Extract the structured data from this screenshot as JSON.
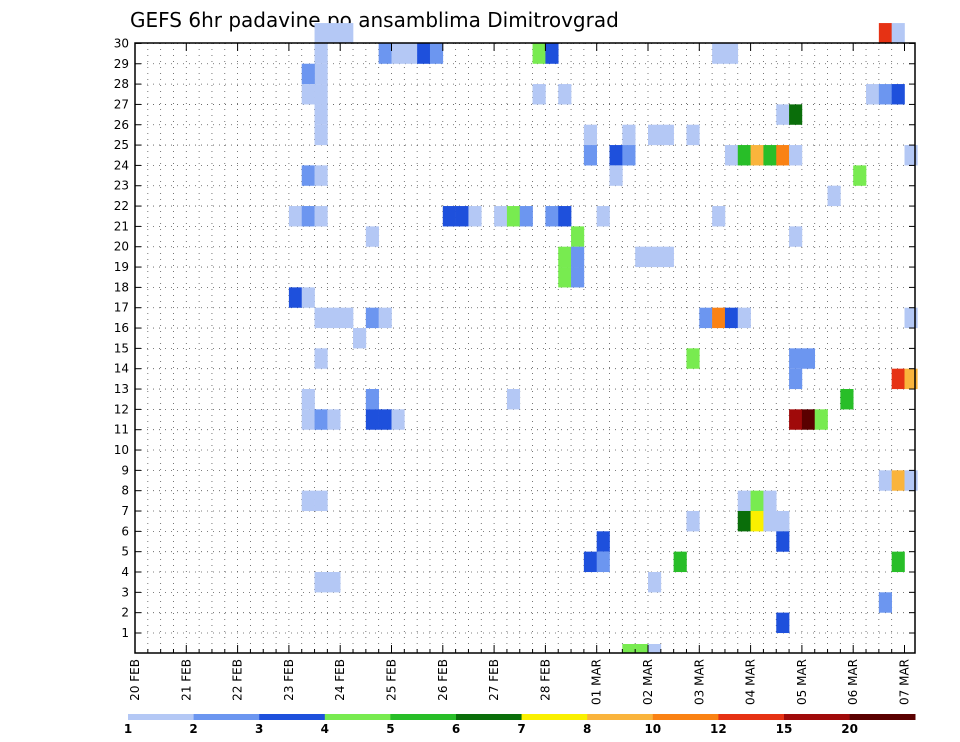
{
  "chart_data": {
    "type": "heatmap",
    "title": "GEFS 6hr padavine po ansamblima Dimitrovgrad",
    "x_tick_labels": [
      "20 FEB",
      "21 FEB",
      "22 FEB",
      "23 FEB",
      "24 FEB",
      "25 FEB",
      "26 FEB",
      "27 FEB",
      "28 FEB",
      "01 MAR",
      "02 MAR",
      "03 MAR",
      "04 MAR",
      "05 MAR",
      "06 MAR",
      "07 MAR"
    ],
    "x_steps_per_day": 4,
    "y_tick_labels": [
      "1",
      "2",
      "3",
      "4",
      "5",
      "6",
      "7",
      "8",
      "9",
      "10",
      "11",
      "12",
      "13",
      "14",
      "15",
      "16",
      "17",
      "18",
      "19",
      "20",
      "21",
      "22",
      "23",
      "24",
      "25",
      "26",
      "27",
      "28",
      "29",
      "30"
    ],
    "grid": "dotted",
    "colorbar": {
      "labels": [
        "1",
        "2",
        "3",
        "4",
        "5",
        "6",
        "7",
        "8",
        "10",
        "12",
        "15",
        "20"
      ],
      "colors": [
        "#b4c8f5",
        "#6c96f0",
        "#1e50dc",
        "#78eb50",
        "#28be28",
        "#0a6e0a",
        "#faf000",
        "#fab43c",
        "#fa8214",
        "#e63214",
        "#a00a0a",
        "#5a0000"
      ]
    },
    "cells": [
      [
        14,
        30,
        1
      ],
      [
        15,
        30,
        1
      ],
      [
        16,
        30,
        1
      ],
      [
        14,
        29,
        1
      ],
      [
        14,
        28,
        1
      ],
      [
        14,
        27,
        1
      ],
      [
        14,
        26,
        1
      ],
      [
        14,
        25,
        1
      ],
      [
        13,
        28,
        2
      ],
      [
        13,
        27,
        1
      ],
      [
        19,
        29,
        2
      ],
      [
        20,
        29,
        1
      ],
      [
        21,
        29,
        1
      ],
      [
        22,
        29,
        3
      ],
      [
        23,
        29,
        2
      ],
      [
        31,
        29,
        4
      ],
      [
        32,
        29,
        3
      ],
      [
        45,
        29,
        1
      ],
      [
        46,
        29,
        1
      ],
      [
        58,
        30,
        10
      ],
      [
        59,
        30,
        1
      ],
      [
        31,
        27,
        1
      ],
      [
        33,
        27,
        1
      ],
      [
        57,
        27,
        1
      ],
      [
        58,
        27,
        2
      ],
      [
        59,
        27,
        3
      ],
      [
        50,
        26,
        1
      ],
      [
        51,
        26,
        6
      ],
      [
        35,
        25,
        1
      ],
      [
        38,
        25,
        1
      ],
      [
        40,
        25,
        1
      ],
      [
        41,
        25,
        1
      ],
      [
        43,
        25,
        1
      ],
      [
        35,
        24,
        2
      ],
      [
        37,
        24,
        3
      ],
      [
        38,
        24,
        2
      ],
      [
        46,
        24,
        1
      ],
      [
        47,
        24,
        5
      ],
      [
        48,
        24,
        8
      ],
      [
        49,
        24,
        5
      ],
      [
        50,
        24,
        9
      ],
      [
        51,
        24,
        1
      ],
      [
        60,
        24,
        1
      ],
      [
        37,
        23,
        1
      ],
      [
        13,
        23,
        2
      ],
      [
        14,
        23,
        1
      ],
      [
        56,
        23,
        4
      ],
      [
        54,
        22,
        1
      ],
      [
        12,
        21,
        1
      ],
      [
        13,
        21,
        2
      ],
      [
        14,
        21,
        1
      ],
      [
        24,
        21,
        3
      ],
      [
        25,
        21,
        3
      ],
      [
        26,
        21,
        1
      ],
      [
        28,
        21,
        1
      ],
      [
        29,
        21,
        4
      ],
      [
        30,
        21,
        2
      ],
      [
        32,
        21,
        2
      ],
      [
        33,
        21,
        3
      ],
      [
        36,
        21,
        1
      ],
      [
        45,
        21,
        1
      ],
      [
        18,
        20,
        1
      ],
      [
        34,
        20,
        4
      ],
      [
        51,
        20,
        1
      ],
      [
        39,
        19,
        1
      ],
      [
        40,
        19,
        1
      ],
      [
        41,
        19,
        1
      ],
      [
        33,
        19,
        4
      ],
      [
        33,
        18,
        4
      ],
      [
        34,
        19,
        2
      ],
      [
        34,
        18,
        2
      ],
      [
        12,
        17,
        3
      ],
      [
        13,
        17,
        1
      ],
      [
        14,
        16,
        1
      ],
      [
        15,
        16,
        1
      ],
      [
        16,
        16,
        1
      ],
      [
        18,
        16,
        2
      ],
      [
        19,
        16,
        1
      ],
      [
        17,
        15,
        1
      ],
      [
        44,
        16,
        2
      ],
      [
        45,
        16,
        9
      ],
      [
        46,
        16,
        3
      ],
      [
        47,
        16,
        1
      ],
      [
        60,
        16,
        1
      ],
      [
        14,
        14,
        1
      ],
      [
        43,
        14,
        4
      ],
      [
        51,
        14,
        2
      ],
      [
        52,
        14,
        2
      ],
      [
        51,
        13,
        2
      ],
      [
        59,
        13,
        10
      ],
      [
        60,
        13,
        8
      ],
      [
        29,
        12,
        1
      ],
      [
        55,
        12,
        5
      ],
      [
        13,
        12,
        1
      ],
      [
        18,
        12,
        2
      ],
      [
        13,
        11,
        1
      ],
      [
        14,
        11,
        2
      ],
      [
        15,
        11,
        1
      ],
      [
        18,
        11,
        3
      ],
      [
        19,
        11,
        3
      ],
      [
        20,
        11,
        1
      ],
      [
        51,
        11,
        11
      ],
      [
        52,
        11,
        12
      ],
      [
        53,
        11,
        4
      ],
      [
        58,
        8,
        1
      ],
      [
        59,
        8,
        8
      ],
      [
        60,
        8,
        1
      ],
      [
        13,
        7,
        1
      ],
      [
        14,
        7,
        1
      ],
      [
        47,
        7,
        1
      ],
      [
        48,
        7,
        4
      ],
      [
        49,
        7,
        1
      ],
      [
        43,
        6,
        1
      ],
      [
        47,
        6,
        6
      ],
      [
        48,
        6,
        7
      ],
      [
        49,
        6,
        1
      ],
      [
        50,
        6,
        1
      ],
      [
        36,
        5,
        3
      ],
      [
        50,
        5,
        3
      ],
      [
        35,
        4,
        3
      ],
      [
        36,
        4,
        2
      ],
      [
        42,
        4,
        5
      ],
      [
        59,
        4,
        5
      ],
      [
        14,
        3,
        1
      ],
      [
        15,
        3,
        1
      ],
      [
        40,
        3,
        1
      ],
      [
        58,
        2,
        2
      ],
      [
        50,
        1,
        3
      ],
      [
        38,
        0,
        4
      ],
      [
        39,
        0,
        4
      ],
      [
        40,
        0,
        1
      ]
    ]
  }
}
